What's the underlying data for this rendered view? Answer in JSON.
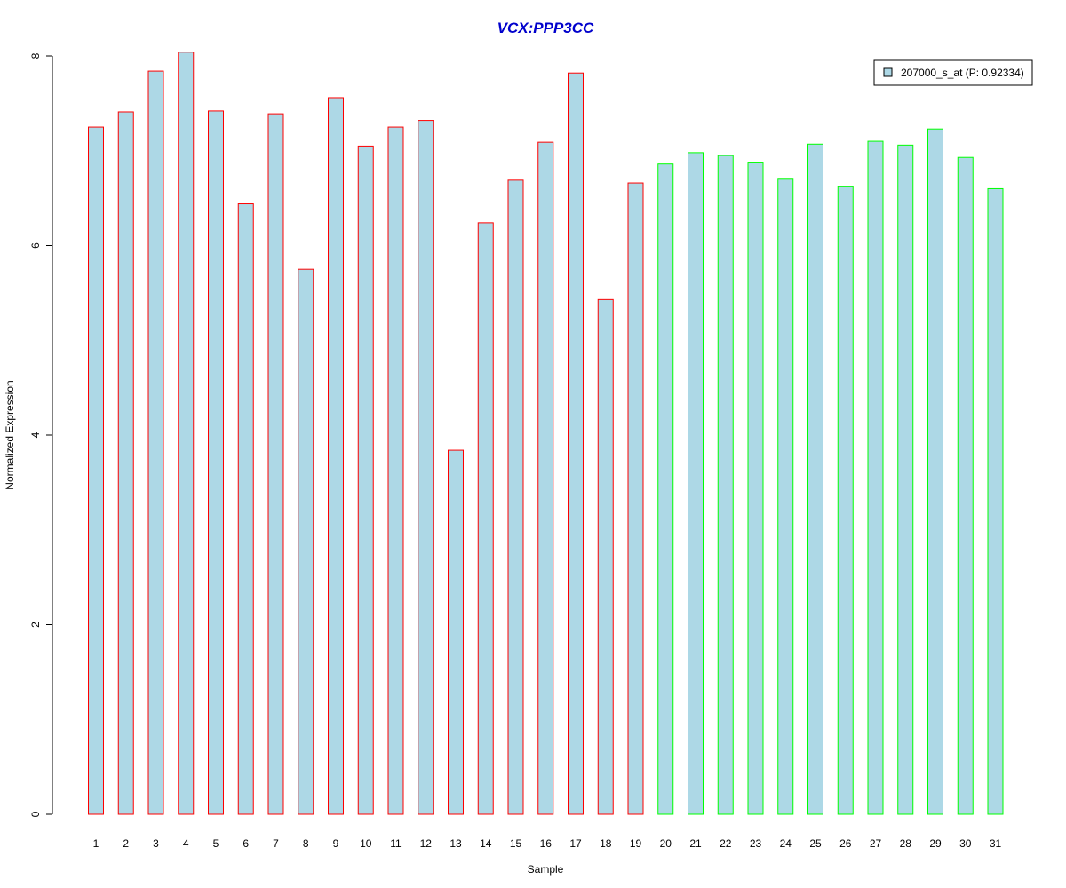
{
  "chart_data": {
    "type": "bar",
    "title": "VCX:PPP3CC",
    "title_color": "#0000cc",
    "xlabel": "Sample",
    "ylabel": "Normalized Expression",
    "ylim": [
      0,
      8
    ],
    "yticks": [
      "0",
      "2",
      "4",
      "6",
      "8"
    ],
    "categories": [
      "1",
      "2",
      "3",
      "4",
      "5",
      "6",
      "7",
      "8",
      "9",
      "10",
      "11",
      "12",
      "13",
      "14",
      "15",
      "16",
      "17",
      "18",
      "19",
      "20",
      "21",
      "22",
      "23",
      "24",
      "25",
      "26",
      "27",
      "28",
      "29",
      "30",
      "31"
    ],
    "series": [
      {
        "name": "207000_s_at (P: 0.92334)",
        "values": [
          7.25,
          7.41,
          7.84,
          8.04,
          7.42,
          6.44,
          7.39,
          5.75,
          7.56,
          7.05,
          7.25,
          7.32,
          3.84,
          6.24,
          6.69,
          7.09,
          7.82,
          5.43,
          6.66,
          6.86,
          6.98,
          6.95,
          6.88,
          6.7,
          7.07,
          6.62,
          7.1,
          7.06,
          7.23,
          6.93,
          6.6
        ]
      }
    ],
    "fill_color": "#add8e6",
    "group_border_colors": [
      "#ff0000",
      "#00ff00"
    ],
    "group_sizes": [
      19,
      12
    ],
    "legend_position": "top-right",
    "grid": false
  }
}
